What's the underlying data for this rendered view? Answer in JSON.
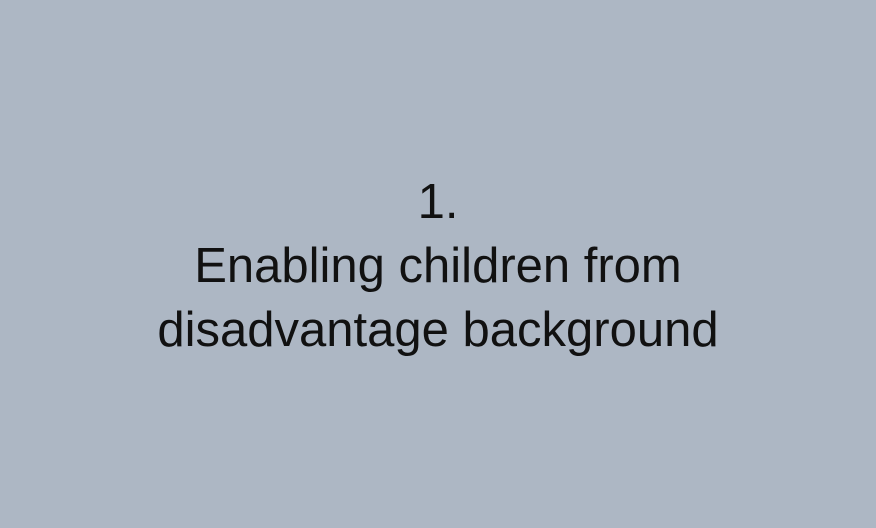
{
  "slide": {
    "background_color": "#adb7c4",
    "text_color": "#111111",
    "number": "1.",
    "title_line_1": "Enabling children from",
    "title_line_2": "disadvantage background"
  }
}
